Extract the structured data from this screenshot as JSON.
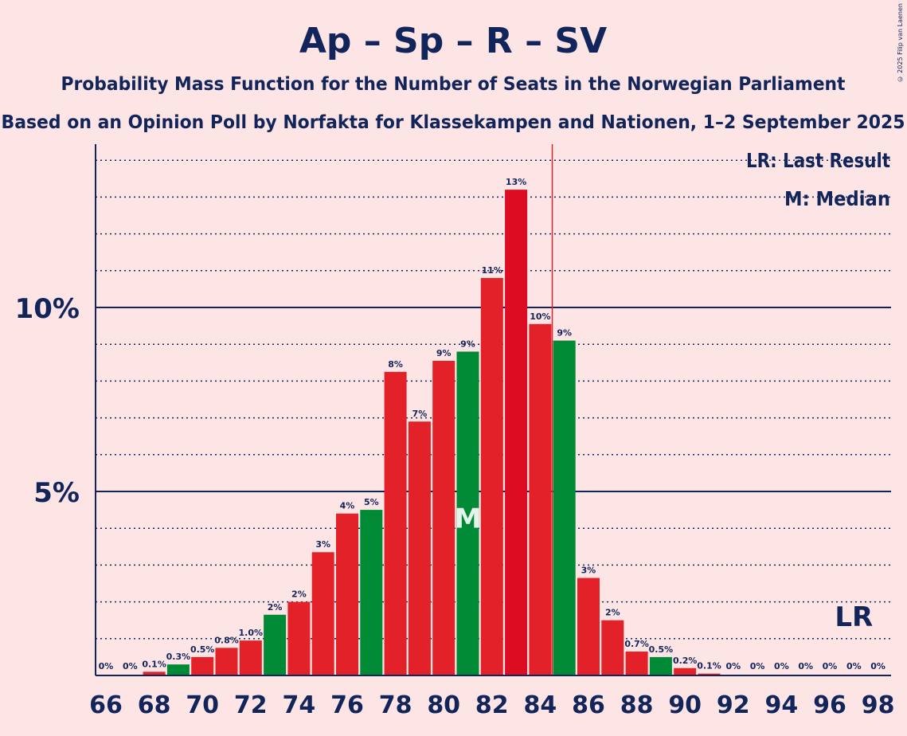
{
  "copyright": "© 2025 Filip van Laenen",
  "colors": {
    "background": "#FDE5E5",
    "text": "#12255A",
    "red": "#E32129",
    "dark_red": "#DC0C22",
    "green": "#008A36",
    "last_result_line": "#E32129"
  },
  "chart_data": {
    "type": "bar",
    "title": "Ap – Sp – R – SV",
    "subtitle": "Probability Mass Function for the Number of Seats in the Norwegian Parliament",
    "subtitle2": "Based on an Opinion Poll by Norfakta for Klassekampen and Nationen, 1–2 September 2025",
    "xlabel": "",
    "ylabel": "",
    "ylim": [
      0,
      14.4
    ],
    "yticks": [
      {
        "value": 5,
        "label": "5%"
      },
      {
        "value": 10,
        "label": "10%"
      }
    ],
    "grid": true,
    "legend": {
      "position": "top-right",
      "entries": [
        "LR: Last Result",
        "M: Median"
      ]
    },
    "x_tick_labels": [
      "66",
      "68",
      "70",
      "72",
      "74",
      "76",
      "78",
      "80",
      "82",
      "84",
      "86",
      "88",
      "90",
      "92",
      "94",
      "96",
      "98"
    ],
    "x_ticks": [
      66,
      68,
      70,
      72,
      74,
      76,
      78,
      80,
      82,
      84,
      86,
      88,
      90,
      92,
      94,
      96,
      98
    ],
    "categories": [
      66,
      67,
      68,
      69,
      70,
      71,
      72,
      73,
      74,
      75,
      76,
      77,
      78,
      79,
      80,
      81,
      82,
      83,
      84,
      85,
      86,
      87,
      88,
      89,
      90,
      91,
      92,
      93,
      94,
      95,
      96,
      97,
      98
    ],
    "values": [
      0,
      0,
      0.1,
      0.3,
      0.5,
      0.75,
      0.95,
      1.65,
      2.0,
      3.35,
      4.4,
      4.5,
      8.25,
      6.9,
      8.55,
      8.8,
      10.8,
      13.2,
      9.55,
      9.1,
      2.65,
      1.5,
      0.65,
      0.5,
      0.2,
      0.05,
      0,
      0,
      0,
      0,
      0,
      0,
      0
    ],
    "labels": [
      "0%",
      "0%",
      "0.1%",
      "0.3%",
      "0.5%",
      "0.8%",
      "1.0%",
      "2%",
      "2%",
      "3%",
      "4%",
      "5%",
      "8%",
      "7%",
      "9%",
      "9%",
      "11%",
      "13%",
      "10%",
      "9%",
      "3%",
      "2%",
      "0.7%",
      "0.5%",
      "0.2%",
      "0.1%",
      "0%",
      "0%",
      "0%",
      "0%",
      "0%",
      "0%",
      "0%"
    ],
    "bar_colors": [
      "red",
      "red",
      "red",
      "green",
      "red",
      "red",
      "red",
      "green",
      "red",
      "red",
      "red",
      "green",
      "red",
      "red",
      "red",
      "green",
      "red",
      "dark_red",
      "red",
      "green",
      "red",
      "red",
      "red",
      "green",
      "red",
      "red",
      "red",
      "red",
      "red",
      "red",
      "red",
      "red",
      "red"
    ],
    "median": {
      "seats": 81,
      "label": "M"
    },
    "majority_line_seats": 84.5,
    "last_result": {
      "seats": 97,
      "label": "LR"
    }
  }
}
